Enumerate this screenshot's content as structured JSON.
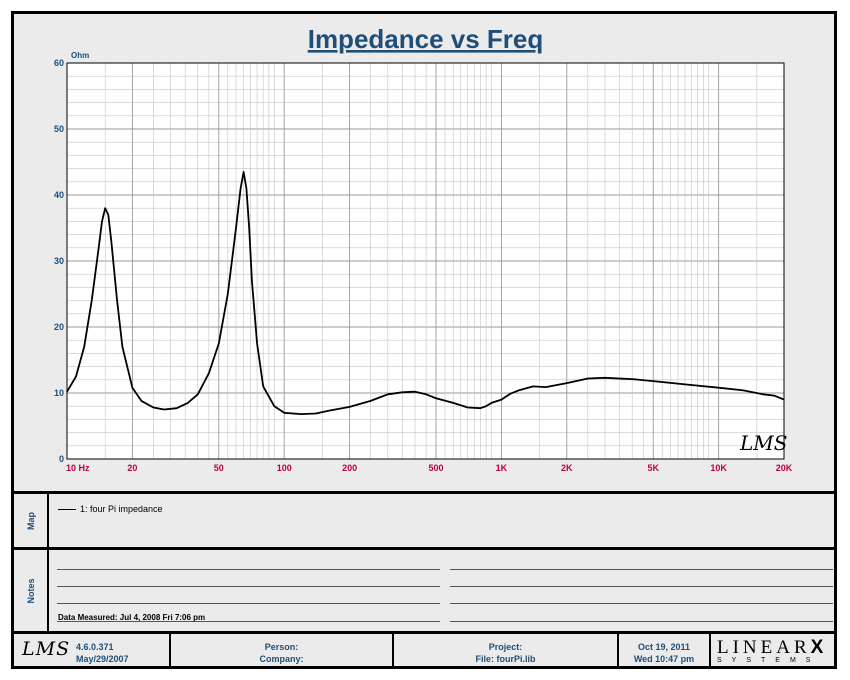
{
  "chart_data": {
    "type": "line",
    "title": "Impedance vs Freq",
    "ylabel": "Ohm",
    "x_scale": "log",
    "xlim": [
      10,
      20000
    ],
    "ylim": [
      0,
      60
    ],
    "y_ticks": [
      0,
      10,
      20,
      30,
      40,
      50,
      60
    ],
    "x_ticks": [
      {
        "value": 10,
        "label": "10  Hz"
      },
      {
        "value": 20,
        "label": "20"
      },
      {
        "value": 50,
        "label": "50"
      },
      {
        "value": 100,
        "label": "100"
      },
      {
        "value": 200,
        "label": "200"
      },
      {
        "value": 500,
        "label": "500"
      },
      {
        "value": 1000,
        "label": "1K"
      },
      {
        "value": 2000,
        "label": "2K"
      },
      {
        "value": 5000,
        "label": "5K"
      },
      {
        "value": 10000,
        "label": "10K"
      },
      {
        "value": 20000,
        "label": "20K"
      }
    ],
    "grid": true,
    "series": [
      {
        "name": "1: four Pi impedance",
        "color": "#000000",
        "x": [
          10,
          11,
          12,
          13,
          14,
          14.5,
          15,
          15.5,
          16,
          17,
          18,
          20,
          22,
          25,
          28,
          32,
          36,
          40,
          45,
          50,
          55,
          60,
          63,
          65,
          67,
          69,
          71,
          75,
          80,
          90,
          100,
          120,
          140,
          160,
          200,
          250,
          300,
          350,
          400,
          450,
          500,
          600,
          700,
          800,
          850,
          900,
          1000,
          1100,
          1200,
          1400,
          1600,
          2000,
          2500,
          3000,
          4000,
          5000,
          7000,
          10000,
          13000,
          16000,
          18000,
          20000
        ],
        "y": [
          10.2,
          12.5,
          17,
          24,
          32,
          36,
          38,
          37,
          33,
          24,
          17,
          10.8,
          8.8,
          7.8,
          7.5,
          7.7,
          8.5,
          9.8,
          13,
          17.5,
          25,
          35,
          41,
          43.5,
          41,
          35,
          27,
          17.5,
          11,
          8,
          7,
          6.8,
          6.9,
          7.3,
          7.9,
          8.8,
          9.8,
          10.1,
          10.2,
          9.8,
          9.2,
          8.5,
          7.8,
          7.7,
          8,
          8.5,
          9,
          9.9,
          10.4,
          11,
          10.9,
          11.5,
          12.2,
          12.3,
          12.1,
          11.8,
          11.3,
          10.8,
          10.4,
          9.8,
          9.6,
          9
        ]
      }
    ]
  },
  "watermark": "LMS",
  "map": {
    "label": "Map",
    "legend_text": "1: four Pi impedance"
  },
  "notes": {
    "label": "Notes",
    "date_measured": "Data Measured: Jul 4, 2008  Fri  7:06 pm"
  },
  "footer": {
    "logo": "LMS",
    "version": "4.6.0.371",
    "version_date": "May/29/2007",
    "person": "Person:",
    "company": "Company:",
    "project": "Project:",
    "file": "File: fourPi.lib",
    "date": "Oct 19, 2011",
    "time": "Wed 10:47 pm",
    "brand": "LINEAR",
    "brand_mark": "X",
    "brand_sub": "SYSTEMS"
  },
  "colors": {
    "axis_text": "#1f4e79",
    "tick_text": "#c0003c",
    "background": "#ebebeb",
    "grid_major": "#9a9a9a",
    "grid_minor": "#c4c4c4"
  }
}
